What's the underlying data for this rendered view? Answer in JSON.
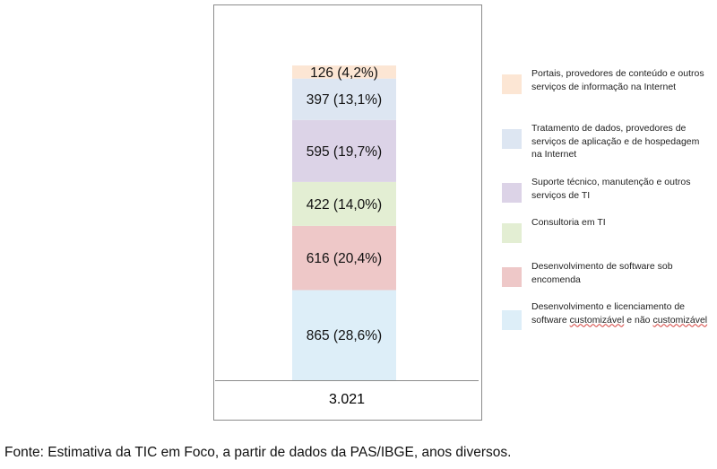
{
  "chart_data": {
    "type": "bar",
    "stacked": true,
    "categories": [
      ""
    ],
    "segments": [
      {
        "name": "Desenvolvimento e licenciamento de software customizável e não customizável",
        "value": 865,
        "label": "865 (28,6%)",
        "color": "#ddeef8"
      },
      {
        "name": "Desenvolvimento de software sob encomenda",
        "value": 616,
        "label": "616 (20,4%)",
        "color": "#eec8c8"
      },
      {
        "name": "Consultoria em TI",
        "value": 422,
        "label": "422 (14,0%)",
        "color": "#e3eed3"
      },
      {
        "name": "Suporte técnico, manutenção e outros serviços de TI",
        "value": 595,
        "label": "595 (19,7%)",
        "color": "#dcd3e7"
      },
      {
        "name": "Tratamento de dados, provedores de serviços de aplicação e de hospedagem na Internet",
        "value": 397,
        "label": "397 (13,1%)",
        "color": "#dde6f2"
      },
      {
        "name": "Portais, provedores de conteúdo e outros serviços de informação na Internet",
        "value": 126,
        "label": "126 (4,2%)",
        "color": "#fce6d4"
      }
    ],
    "total_label": "3.021",
    "legend": {
      "placement": "right",
      "items": [
        {
          "name": "Portais, provedores de conteúdo e outros serviços de informação na Internet",
          "color": "#fce6d4"
        },
        {
          "name": "Tratamento de dados, provedores de serviços de aplicação e de hospedagem na Internet",
          "color": "#dde6f2"
        },
        {
          "name": "Suporte técnico, manutenção e outros serviços de TI",
          "color": "#dcd3e7"
        },
        {
          "name": "Consultoria em TI",
          "color": "#e3eed3"
        },
        {
          "name": "Desenvolvimento de software sob encomenda",
          "color": "#eec8c8"
        },
        {
          "name": "Desenvolvimento e licenciamento de software customizável e não customizável",
          "color": "#ddeef8"
        }
      ]
    }
  },
  "source_note": "Fonte: Estimativa da TIC em Foco, a partir de dados da PAS/IBGE, anos diversos."
}
